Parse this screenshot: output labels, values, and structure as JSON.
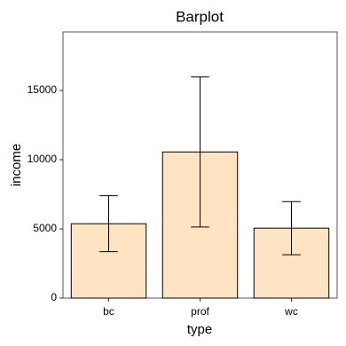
{
  "chart_data": {
    "type": "bar",
    "title": "Barplot",
    "x_label": "type",
    "y_label": "income",
    "categories": [
      "bc",
      "prof",
      "wc"
    ],
    "values": [
      5374,
      10559,
      5052
    ],
    "errors": [
      2020,
      5420,
      1920
    ],
    "color": "#FFE4C4",
    "ylim": [
      0,
      19230
    ],
    "yticks": [
      0,
      5000,
      10000,
      15000
    ],
    "grid": false
  }
}
